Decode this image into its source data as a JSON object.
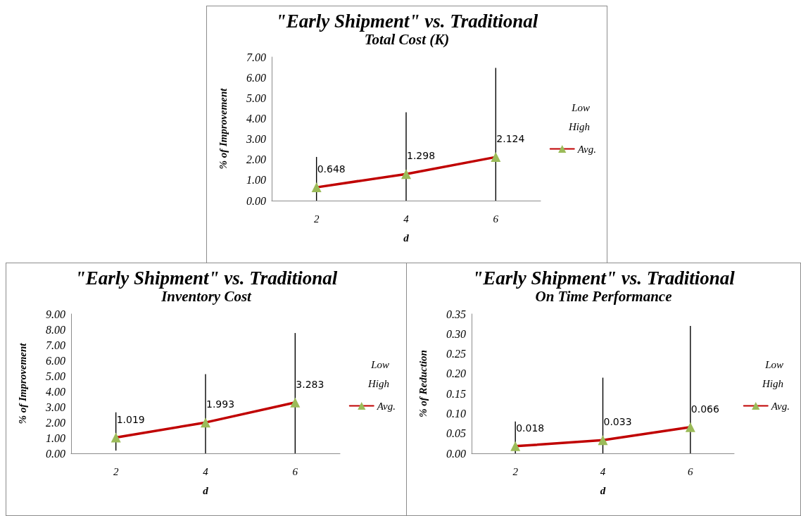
{
  "chart_data": [
    {
      "type": "line",
      "title": "\"Early Shipment\" vs. Traditional",
      "subtitle": "Total Cost (K)",
      "xlabel": "d",
      "ylabel": "% of Improvement",
      "categories": [
        "2",
        "4",
        "6"
      ],
      "ylim": [
        0,
        7
      ],
      "yticks": [
        {
          "value": 0,
          "label": "0.00"
        },
        {
          "value": 1,
          "label": "1.00"
        },
        {
          "value": 2,
          "label": "2.00"
        },
        {
          "value": 3,
          "label": "3.00"
        },
        {
          "value": 4,
          "label": "4.00"
        },
        {
          "value": 5,
          "label": "5.00"
        },
        {
          "value": 6,
          "label": "6.00"
        },
        {
          "value": 7,
          "label": "7.00"
        }
      ],
      "grid": false,
      "legend": "right",
      "annotations": [
        "Low",
        "High"
      ],
      "series": [
        {
          "name": "Avg.",
          "color": "#c00000",
          "marker": "triangle",
          "data_labels": true,
          "values": [
            0.648,
            1.298,
            2.124
          ],
          "errors": [
            [
              0.0,
              2.13
            ],
            [
              0.0,
              4.31
            ],
            [
              0.0,
              6.47
            ]
          ]
        }
      ]
    },
    {
      "type": "line",
      "title": "\"Early Shipment\" vs. Traditional",
      "subtitle": "Inventory Cost",
      "xlabel": "d",
      "ylabel": "% of Improvement",
      "categories": [
        "2",
        "4",
        "6"
      ],
      "ylim": [
        0,
        9
      ],
      "yticks": [
        {
          "value": 0,
          "label": "0.00"
        },
        {
          "value": 1,
          "label": "1.00"
        },
        {
          "value": 2,
          "label": "2.00"
        },
        {
          "value": 3,
          "label": "3.00"
        },
        {
          "value": 4,
          "label": "4.00"
        },
        {
          "value": 5,
          "label": "5.00"
        },
        {
          "value": 6,
          "label": "6.00"
        },
        {
          "value": 7,
          "label": "7.00"
        },
        {
          "value": 8,
          "label": "8.00"
        },
        {
          "value": 9,
          "label": "9.00"
        }
      ],
      "grid": false,
      "legend": "right",
      "annotations": [
        "Low",
        "High"
      ],
      "series": [
        {
          "name": "Avg.",
          "color": "#c00000",
          "marker": "triangle",
          "data_labels": true,
          "values": [
            1.019,
            1.993,
            3.283
          ],
          "errors": [
            [
              0.18,
              2.65
            ],
            [
              0.0,
              5.11
            ],
            [
              0.0,
              7.77
            ]
          ]
        }
      ]
    },
    {
      "type": "line",
      "title": "\"Early Shipment\" vs. Traditional",
      "subtitle": "On Time Performance",
      "xlabel": "d",
      "ylabel": "% of Reduction",
      "categories": [
        "2",
        "4",
        "6"
      ],
      "ylim": [
        0,
        0.35
      ],
      "yticks": [
        {
          "value": 0,
          "label": "0.00"
        },
        {
          "value": 0.05,
          "label": "0.05"
        },
        {
          "value": 0.1,
          "label": "0.10"
        },
        {
          "value": 0.15,
          "label": "0.15"
        },
        {
          "value": 0.2,
          "label": "0.20"
        },
        {
          "value": 0.25,
          "label": "0.25"
        },
        {
          "value": 0.3,
          "label": "0.30"
        },
        {
          "value": 0.35,
          "label": "0.35"
        }
      ],
      "grid": false,
      "legend": "right",
      "annotations": [
        "Low",
        "High"
      ],
      "series": [
        {
          "name": "Avg.",
          "color": "#c00000",
          "marker": "triangle",
          "data_labels": true,
          "values": [
            0.018,
            0.033,
            0.066
          ],
          "errors": [
            [
              0.0,
              0.08
            ],
            [
              0.0,
              0.19
            ],
            [
              0.0,
              0.32
            ]
          ]
        }
      ]
    }
  ]
}
